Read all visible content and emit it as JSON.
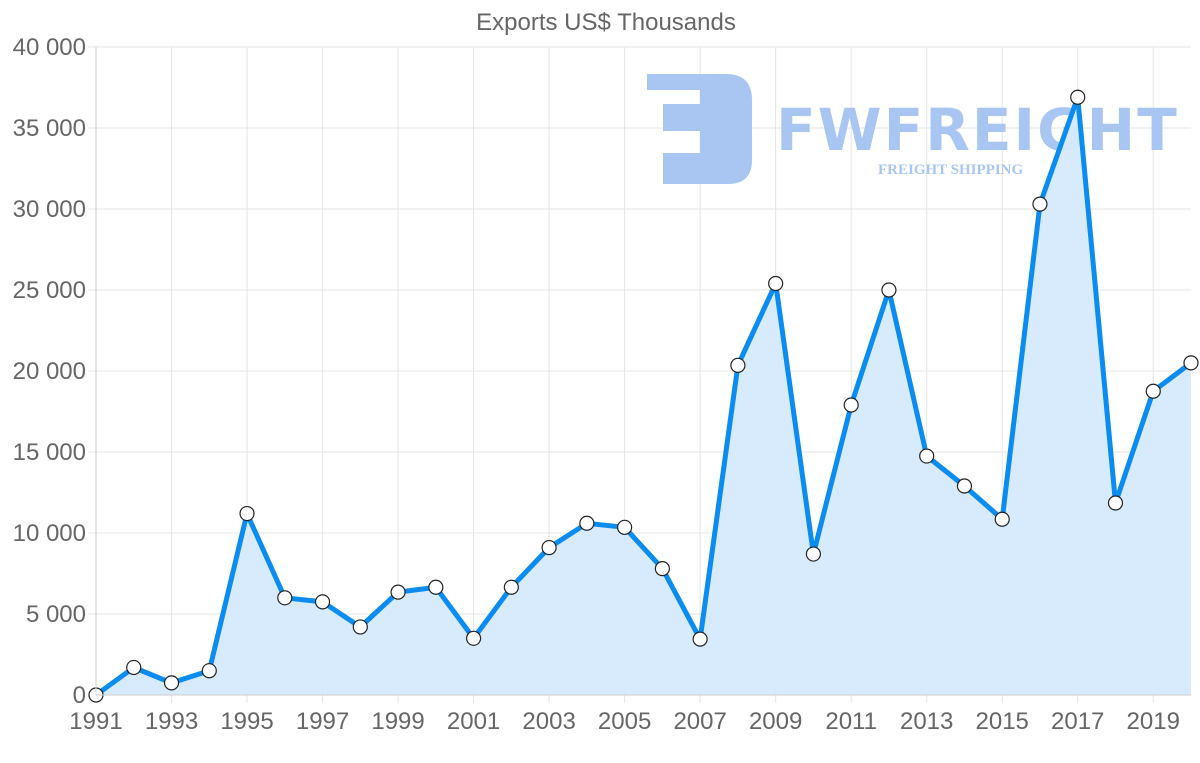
{
  "chart_data": {
    "type": "area",
    "title": "Exports US$ Thousands",
    "xlabel": "",
    "ylabel": "",
    "x": [
      1991,
      1992,
      1993,
      1994,
      1995,
      1996,
      1997,
      1998,
      1999,
      2000,
      2001,
      2002,
      2003,
      2004,
      2005,
      2006,
      2007,
      2008,
      2009,
      2010,
      2011,
      2012,
      2013,
      2014,
      2015,
      2016,
      2017,
      2018,
      2019,
      2020
    ],
    "series": [
      {
        "name": "Exports US$ Thousands",
        "values": [
          0,
          1700,
          750,
          1500,
          11200,
          6000,
          5750,
          4200,
          6350,
          6650,
          3500,
          6650,
          9100,
          10600,
          10350,
          7800,
          3450,
          20350,
          25400,
          8700,
          17900,
          25000,
          14750,
          12900,
          10850,
          30300,
          36900,
          11850,
          18750,
          20500
        ],
        "color": "#0a8cf0",
        "fill": "#d6eafc"
      }
    ],
    "ylim": [
      0,
      40000
    ],
    "yticks": [
      0,
      5000,
      10000,
      15000,
      20000,
      25000,
      30000,
      35000,
      40000
    ],
    "ytick_labels": [
      "0",
      "5 000",
      "10 000",
      "15 000",
      "20 000",
      "25 000",
      "30 000",
      "35 000",
      "40 000"
    ],
    "xtick_labels": [
      "1991",
      "1993",
      "1995",
      "1997",
      "1999",
      "2001",
      "2003",
      "2005",
      "2007",
      "2009",
      "2011",
      "2013",
      "2015",
      "2017",
      "2019"
    ],
    "grid": true,
    "legend": null
  },
  "watermark": {
    "brand": "FWFREIGHT",
    "tagline": "FREIGHT SHIPPING",
    "color": "#a9c6f2"
  },
  "colors": {
    "line": "#0a8cf0",
    "fill": "#d6eafc",
    "grid": "#e5e5e5",
    "axis": "#cccccc",
    "text": "#666666",
    "point_fill": "#ffffff",
    "point_stroke": "#222222"
  }
}
